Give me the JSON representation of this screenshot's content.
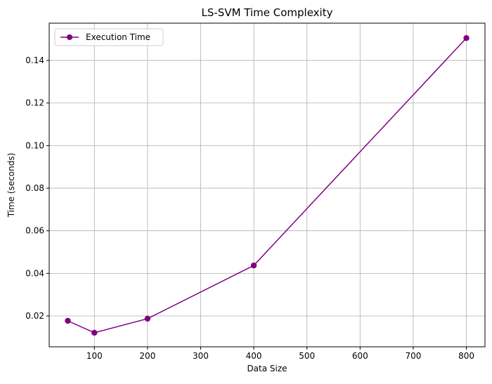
{
  "chart_data": {
    "type": "line",
    "title": "LS-SVM Time Complexity",
    "xlabel": "Data Size",
    "ylabel": "Time (seconds)",
    "xlim": [
      15,
      835
    ],
    "ylim": [
      0.0055,
      0.1575
    ],
    "xticks": [
      100,
      200,
      300,
      400,
      500,
      600,
      700,
      800
    ],
    "yticks": [
      0.02,
      0.04,
      0.06,
      0.08,
      0.1,
      0.12,
      0.14
    ],
    "ytick_labels": [
      "0.02",
      "0.04",
      "0.06",
      "0.08",
      "0.10",
      "0.12",
      "0.14"
    ],
    "grid": true,
    "legend_position": "top-left",
    "series": [
      {
        "name": "Execution Time",
        "color": "#800080",
        "marker": "circle",
        "x": [
          50,
          100,
          200,
          400,
          800
        ],
        "y": [
          0.0177,
          0.0121,
          0.0187,
          0.0437,
          0.1505
        ]
      }
    ]
  }
}
